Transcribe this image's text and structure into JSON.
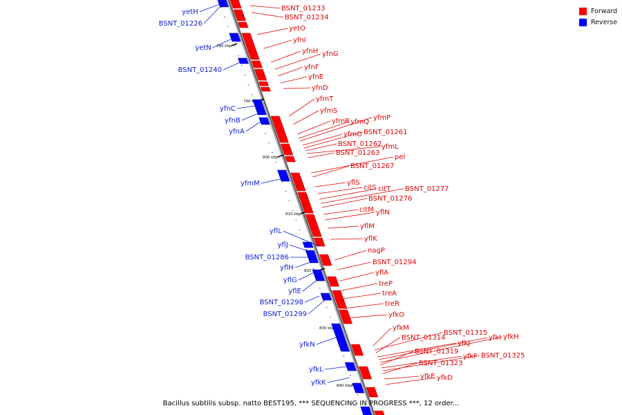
{
  "colors": {
    "forward": "#ff0000",
    "reverse": "#0000ff",
    "backbone": "#808080",
    "reverse_label": "#0a1ad8",
    "forward_label": "#e00000"
  },
  "legend": {
    "forward": "Forward",
    "reverse": "Reverse"
  },
  "caption": "Bacillus subtilis subsp. natto BEST195, *** SEQUENCING IN PROGRESS ***, 12 order...",
  "ticks": [
    "780 kbp",
    "790 kbp",
    "800 kbp",
    "810 kbp",
    "820 kbp",
    "830 kbp",
    "840 kbp"
  ],
  "forward_genes": [
    "BSNT_01233",
    "BSNT_01234",
    "yetO",
    "yfnI",
    "yfnH",
    "yfnG",
    "yfnF",
    "yfnE",
    "yfnD",
    "yfmT",
    "yfmS",
    "yfmR",
    "yfmQ",
    "yfmP",
    "yfmO",
    "BSNT_01261",
    "BSNT_01262",
    "yfmL",
    "BSNT_01263",
    "pel",
    "BSNT_01267",
    "yflS",
    "citS",
    "citT",
    "BSNT_01277",
    "BSNT_01276",
    "citM",
    "yflN",
    "yflM",
    "yflK",
    "nagP",
    "BSNT_01294",
    "yflA",
    "treP",
    "treA",
    "treR",
    "yfkO",
    "yfkM",
    "BSNT_01315",
    "BSNT_01314",
    "yfkJ",
    "yfkI",
    "yfkH",
    "BSNT_01319",
    "yfkF",
    "BSNT_01325",
    "BSNT_01323",
    "yfkE",
    "yfkD"
  ],
  "reverse_genes": [
    "yetH",
    "BSNT_01226",
    "yetN",
    "BSNT_01240",
    "yfnC",
    "yfnB",
    "yfnA",
    "yfmM",
    "yflL",
    "yflJ",
    "BSNT_01286",
    "yflH",
    "yflG",
    "yflE",
    "BSNT_01298",
    "BSNT_01299",
    "yfkN",
    "yfkL",
    "yfkK"
  ]
}
